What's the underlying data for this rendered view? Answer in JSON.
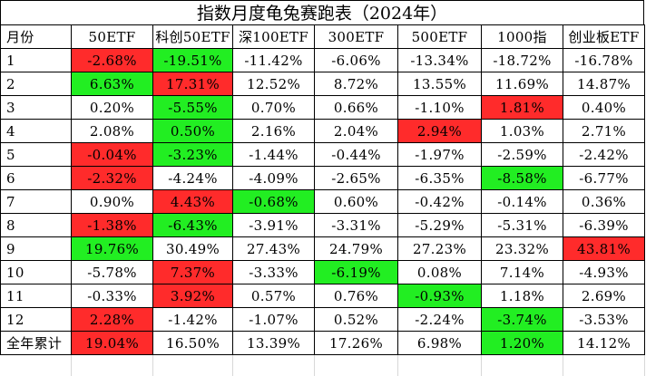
{
  "title": "指数月度龟兔赛跑表（2024年）",
  "headers": [
    "月份",
    "50ETF",
    "科创50ETF",
    "深100ETF",
    "300ETF",
    "500ETF",
    "1000指",
    "创业板ETF"
  ],
  "rows": [
    {
      "label": "1",
      "cells": [
        {
          "v": "-2.68%",
          "c": "red"
        },
        {
          "v": "-19.51%",
          "c": "green"
        },
        {
          "v": "-11.42%",
          "c": ""
        },
        {
          "v": "-6.06%",
          "c": ""
        },
        {
          "v": "-13.34%",
          "c": ""
        },
        {
          "v": "-18.72%",
          "c": ""
        },
        {
          "v": "-16.78%",
          "c": ""
        }
      ]
    },
    {
      "label": "2",
      "cells": [
        {
          "v": "6.63%",
          "c": "green"
        },
        {
          "v": "17.31%",
          "c": "red"
        },
        {
          "v": "12.52%",
          "c": ""
        },
        {
          "v": "8.72%",
          "c": ""
        },
        {
          "v": "13.55%",
          "c": ""
        },
        {
          "v": "11.69%",
          "c": ""
        },
        {
          "v": "14.87%",
          "c": ""
        }
      ]
    },
    {
      "label": "3",
      "cells": [
        {
          "v": "0.20%",
          "c": ""
        },
        {
          "v": "-5.55%",
          "c": "green"
        },
        {
          "v": "0.70%",
          "c": ""
        },
        {
          "v": "0.66%",
          "c": ""
        },
        {
          "v": "-1.10%",
          "c": ""
        },
        {
          "v": "1.81%",
          "c": "red"
        },
        {
          "v": "0.40%",
          "c": ""
        }
      ]
    },
    {
      "label": "4",
      "cells": [
        {
          "v": "2.08%",
          "c": ""
        },
        {
          "v": "0.50%",
          "c": "green"
        },
        {
          "v": "2.16%",
          "c": ""
        },
        {
          "v": "2.04%",
          "c": ""
        },
        {
          "v": "2.94%",
          "c": "red"
        },
        {
          "v": "1.03%",
          "c": ""
        },
        {
          "v": "2.71%",
          "c": ""
        }
      ]
    },
    {
      "label": "5",
      "cells": [
        {
          "v": "-0.04%",
          "c": "red"
        },
        {
          "v": "-3.23%",
          "c": "green"
        },
        {
          "v": "-1.44%",
          "c": ""
        },
        {
          "v": "-0.44%",
          "c": ""
        },
        {
          "v": "-1.97%",
          "c": ""
        },
        {
          "v": "-2.59%",
          "c": ""
        },
        {
          "v": "-2.42%",
          "c": ""
        }
      ]
    },
    {
      "label": "6",
      "cells": [
        {
          "v": "-2.32%",
          "c": "red"
        },
        {
          "v": "-4.24%",
          "c": ""
        },
        {
          "v": "-4.09%",
          "c": ""
        },
        {
          "v": "-2.65%",
          "c": ""
        },
        {
          "v": "-6.35%",
          "c": ""
        },
        {
          "v": "-8.58%",
          "c": "green"
        },
        {
          "v": "-6.77%",
          "c": ""
        }
      ]
    },
    {
      "label": "7",
      "cells": [
        {
          "v": "0.90%",
          "c": ""
        },
        {
          "v": "4.43%",
          "c": "red"
        },
        {
          "v": "-0.68%",
          "c": "green"
        },
        {
          "v": "0.60%",
          "c": ""
        },
        {
          "v": "-0.42%",
          "c": ""
        },
        {
          "v": "-0.14%",
          "c": ""
        },
        {
          "v": "0.36%",
          "c": ""
        }
      ]
    },
    {
      "label": "8",
      "cells": [
        {
          "v": "-1.38%",
          "c": "red"
        },
        {
          "v": "-6.43%",
          "c": "green"
        },
        {
          "v": "-3.91%",
          "c": ""
        },
        {
          "v": "-3.31%",
          "c": ""
        },
        {
          "v": "-5.29%",
          "c": ""
        },
        {
          "v": "-5.31%",
          "c": ""
        },
        {
          "v": "-6.39%",
          "c": ""
        }
      ]
    },
    {
      "label": "9",
      "cells": [
        {
          "v": "19.76%",
          "c": "green"
        },
        {
          "v": "30.49%",
          "c": ""
        },
        {
          "v": "27.43%",
          "c": ""
        },
        {
          "v": "24.79%",
          "c": ""
        },
        {
          "v": "27.23%",
          "c": ""
        },
        {
          "v": "23.32%",
          "c": ""
        },
        {
          "v": "43.81%",
          "c": "red"
        }
      ]
    },
    {
      "label": "10",
      "cells": [
        {
          "v": "-5.78%",
          "c": ""
        },
        {
          "v": "7.37%",
          "c": "red"
        },
        {
          "v": "-3.33%",
          "c": ""
        },
        {
          "v": "-6.19%",
          "c": "green"
        },
        {
          "v": "0.08%",
          "c": ""
        },
        {
          "v": "7.14%",
          "c": ""
        },
        {
          "v": "-4.93%",
          "c": ""
        }
      ]
    },
    {
      "label": "11",
      "cells": [
        {
          "v": "-0.33%",
          "c": ""
        },
        {
          "v": "3.92%",
          "c": "red"
        },
        {
          "v": "0.57%",
          "c": ""
        },
        {
          "v": "0.76%",
          "c": ""
        },
        {
          "v": "-0.93%",
          "c": "green"
        },
        {
          "v": "1.18%",
          "c": ""
        },
        {
          "v": "2.69%",
          "c": ""
        }
      ]
    },
    {
      "label": "12",
      "cells": [
        {
          "v": "2.28%",
          "c": "red"
        },
        {
          "v": "-1.42%",
          "c": ""
        },
        {
          "v": "-1.07%",
          "c": ""
        },
        {
          "v": "0.52%",
          "c": ""
        },
        {
          "v": "-2.24%",
          "c": ""
        },
        {
          "v": "-3.74%",
          "c": "green"
        },
        {
          "v": "-3.53%",
          "c": ""
        }
      ]
    },
    {
      "label": "全年累计",
      "cells": [
        {
          "v": "19.04%",
          "c": "red"
        },
        {
          "v": "16.50%",
          "c": ""
        },
        {
          "v": "13.39%",
          "c": ""
        },
        {
          "v": "17.26%",
          "c": ""
        },
        {
          "v": "6.98%",
          "c": ""
        },
        {
          "v": "1.20%",
          "c": "green"
        },
        {
          "v": "14.12%",
          "c": ""
        }
      ]
    }
  ],
  "colors": {
    "red": "#ff2b2b",
    "green": "#22ee22"
  }
}
